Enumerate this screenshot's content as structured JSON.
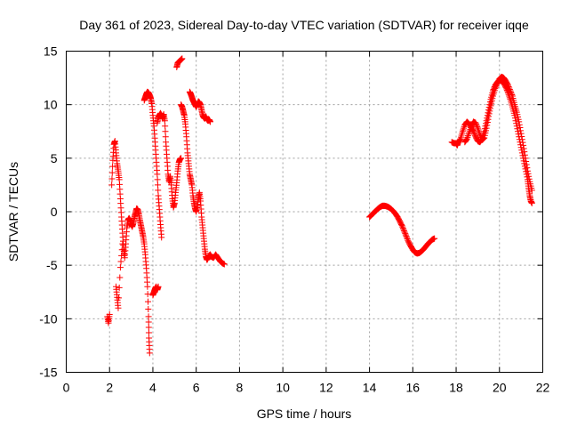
{
  "chart_data": {
    "type": "scatter",
    "title": "Day 361 of 2023, Sidereal Day-to-day VTEC variation (SDTVAR) for receiver iqqe",
    "xlabel": "GPS time / hours",
    "ylabel": "SDTVAR / TECUs",
    "xlim": [
      0,
      22
    ],
    "ylim": [
      -15,
      15
    ],
    "xticks": [
      0,
      2,
      4,
      6,
      8,
      10,
      12,
      14,
      16,
      18,
      20,
      22
    ],
    "yticks": [
      -15,
      -10,
      -5,
      0,
      5,
      10,
      15
    ],
    "grid": true,
    "marker": "plus",
    "color": "#ff0000",
    "series": [
      {
        "name": "SDTVAR",
        "segments": [
          [
            [
              1.9,
              -9.8
            ],
            [
              1.95,
              -10.4
            ],
            [
              2.0,
              -9.6
            ]
          ],
          [
            [
              2.1,
              2.5
            ],
            [
              2.15,
              4.8
            ],
            [
              2.2,
              6.3
            ],
            [
              2.25,
              6.6
            ],
            [
              2.3,
              5.5
            ],
            [
              2.35,
              4.5
            ],
            [
              2.4,
              3.8
            ],
            [
              2.45,
              3.0
            ],
            [
              2.5,
              1.2
            ],
            [
              2.55,
              -0.5
            ],
            [
              2.6,
              -2.0
            ],
            [
              2.65,
              -3.5
            ],
            [
              2.7,
              -4.3
            ],
            [
              2.75,
              -3.0
            ],
            [
              2.8,
              -1.5
            ],
            [
              2.85,
              -0.8
            ],
            [
              2.9,
              -0.6
            ],
            [
              2.95,
              -0.8
            ],
            [
              3.0,
              -1.2
            ],
            [
              3.05,
              -1.4
            ],
            [
              3.1,
              -1.0
            ],
            [
              3.15,
              -0.5
            ],
            [
              3.2,
              -0.1
            ],
            [
              3.25,
              0.3
            ],
            [
              3.3,
              0.2
            ],
            [
              3.35,
              -0.2
            ],
            [
              3.4,
              -0.8
            ],
            [
              3.45,
              -1.3
            ],
            [
              3.5,
              -1.8
            ],
            [
              3.55,
              -2.3
            ],
            [
              3.6,
              -3.0
            ],
            [
              3.65,
              -4.0
            ],
            [
              3.7,
              -5.3
            ],
            [
              3.75,
              -7.0
            ],
            [
              3.8,
              -9.8
            ],
            [
              3.82,
              -11.8
            ],
            [
              3.85,
              -13.2
            ]
          ],
          [
            [
              2.3,
              -7.0
            ],
            [
              2.35,
              -8.0
            ],
            [
              2.4,
              -9.0
            ],
            [
              2.5,
              -5.2
            ],
            [
              2.6,
              -3.0
            ]
          ],
          [
            [
              3.6,
              10.4
            ],
            [
              3.65,
              10.7
            ],
            [
              3.7,
              11.0
            ],
            [
              3.75,
              11.2
            ],
            [
              3.8,
              11.1
            ],
            [
              3.85,
              10.9
            ],
            [
              3.9,
              10.6
            ],
            [
              3.95,
              10.1
            ],
            [
              4.0,
              9.0
            ],
            [
              4.05,
              8.0
            ],
            [
              4.1,
              6.5
            ],
            [
              4.15,
              5.0
            ],
            [
              4.2,
              3.5
            ],
            [
              4.25,
              1.5
            ],
            [
              4.3,
              0.2
            ],
            [
              4.35,
              -1.2
            ],
            [
              4.4,
              -2.4
            ]
          ],
          [
            [
              4.0,
              -7.8
            ],
            [
              4.05,
              -7.5
            ],
            [
              4.1,
              -7.2
            ],
            [
              4.15,
              -7.0
            ],
            [
              4.2,
              -7.3
            ],
            [
              4.25,
              -7.0
            ]
          ],
          [
            [
              4.2,
              8.3
            ],
            [
              4.25,
              8.8
            ],
            [
              4.3,
              9.0
            ],
            [
              4.35,
              9.2
            ],
            [
              4.4,
              9.0
            ],
            [
              4.45,
              8.7
            ],
            [
              4.5,
              9.1
            ],
            [
              4.55,
              8.5
            ],
            [
              4.6,
              6.5
            ],
            [
              4.65,
              5.0
            ],
            [
              4.7,
              3.5
            ],
            [
              4.75,
              2.8
            ],
            [
              4.8,
              3.3
            ],
            [
              4.85,
              2.5
            ],
            [
              4.9,
              1.2
            ],
            [
              4.95,
              0.4
            ],
            [
              5.0,
              0.8
            ],
            [
              5.05,
              1.8
            ],
            [
              5.1,
              2.7
            ],
            [
              5.15,
              3.8
            ],
            [
              5.2,
              4.6
            ],
            [
              5.25,
              4.9
            ],
            [
              5.3,
              5.0
            ]
          ],
          [
            [
              5.1,
              13.5
            ],
            [
              5.15,
              13.9
            ],
            [
              5.2,
              14.0
            ],
            [
              5.25,
              14.1
            ],
            [
              5.3,
              14.2
            ],
            [
              5.35,
              14.3
            ]
          ],
          [
            [
              5.3,
              10.0
            ],
            [
              5.35,
              9.8
            ],
            [
              5.4,
              9.4
            ],
            [
              5.45,
              9.0
            ],
            [
              5.5,
              8.2
            ],
            [
              5.55,
              7.0
            ],
            [
              5.6,
              5.5
            ],
            [
              5.65,
              4.5
            ],
            [
              5.7,
              3.5
            ],
            [
              5.75,
              3.0
            ],
            [
              5.8,
              2.5
            ],
            [
              5.85,
              1.5
            ],
            [
              5.9,
              0.8
            ],
            [
              5.95,
              0.3
            ],
            [
              6.0,
              0.0
            ],
            [
              6.05,
              0.5
            ],
            [
              6.1,
              1.3
            ],
            [
              6.15,
              1.8
            ],
            [
              6.2,
              1.0
            ],
            [
              6.25,
              -0.5
            ],
            [
              6.3,
              -1.5
            ],
            [
              6.35,
              -2.5
            ],
            [
              6.4,
              -3.5
            ],
            [
              6.45,
              -4.2
            ],
            [
              6.5,
              -4.5
            ],
            [
              6.55,
              -4.3
            ],
            [
              6.6,
              -4.1
            ],
            [
              6.65,
              -4.0
            ],
            [
              6.7,
              -4.2
            ],
            [
              6.8,
              -4.3
            ],
            [
              6.9,
              -4.0
            ],
            [
              7.0,
              -4.3
            ],
            [
              7.1,
              -4.6
            ],
            [
              7.2,
              -4.8
            ],
            [
              7.3,
              -4.9
            ]
          ],
          [
            [
              5.7,
              11.2
            ],
            [
              5.75,
              11.0
            ],
            [
              5.8,
              10.7
            ],
            [
              5.85,
              10.4
            ],
            [
              5.9,
              10.2
            ],
            [
              5.95,
              10.0
            ],
            [
              6.0,
              9.8
            ],
            [
              6.05,
              10.0
            ],
            [
              6.1,
              10.3
            ],
            [
              6.15,
              10.2
            ],
            [
              6.2,
              10.0
            ],
            [
              6.25,
              9.5
            ],
            [
              6.3,
              9.0
            ],
            [
              6.35,
              8.8
            ],
            [
              6.4,
              8.7
            ],
            [
              6.45,
              8.9
            ],
            [
              6.5,
              8.6
            ],
            [
              6.55,
              8.5
            ],
            [
              6.6,
              8.6
            ],
            [
              6.65,
              8.4
            ]
          ],
          [
            [
              14.0,
              -0.5
            ],
            [
              14.1,
              -0.3
            ],
            [
              14.2,
              -0.1
            ],
            [
              14.3,
              0.1
            ],
            [
              14.4,
              0.3
            ],
            [
              14.5,
              0.45
            ],
            [
              14.6,
              0.55
            ],
            [
              14.7,
              0.55
            ],
            [
              14.8,
              0.5
            ],
            [
              14.9,
              0.4
            ],
            [
              15.0,
              0.25
            ],
            [
              15.1,
              0.05
            ],
            [
              15.2,
              -0.2
            ],
            [
              15.3,
              -0.5
            ],
            [
              15.4,
              -0.9
            ],
            [
              15.5,
              -1.3
            ],
            [
              15.6,
              -1.8
            ],
            [
              15.7,
              -2.3
            ],
            [
              15.8,
              -2.8
            ],
            [
              15.9,
              -3.2
            ],
            [
              16.0,
              -3.55
            ],
            [
              16.1,
              -3.8
            ],
            [
              16.2,
              -3.9
            ],
            [
              16.3,
              -3.85
            ],
            [
              16.4,
              -3.7
            ],
            [
              16.5,
              -3.5
            ],
            [
              16.6,
              -3.25
            ],
            [
              16.7,
              -3.0
            ],
            [
              16.8,
              -2.8
            ],
            [
              16.9,
              -2.6
            ],
            [
              17.0,
              -2.5
            ]
          ],
          [
            [
              17.8,
              6.5
            ],
            [
              17.9,
              6.4
            ],
            [
              18.0,
              6.4
            ],
            [
              18.05,
              6.2
            ],
            [
              18.1,
              6.5
            ],
            [
              18.2,
              6.8
            ],
            [
              18.3,
              7.5
            ],
            [
              18.4,
              8.1
            ],
            [
              18.5,
              8.4
            ],
            [
              18.6,
              8.2
            ],
            [
              18.7,
              7.9
            ],
            [
              18.8,
              7.5
            ],
            [
              18.9,
              7.0
            ],
            [
              19.0,
              6.6
            ],
            [
              19.1,
              6.5
            ],
            [
              19.2,
              6.8
            ],
            [
              19.3,
              7.5
            ],
            [
              19.4,
              8.5
            ],
            [
              19.5,
              9.5
            ],
            [
              19.6,
              10.5
            ],
            [
              19.7,
              11.3
            ],
            [
              19.8,
              11.8
            ],
            [
              19.9,
              12.1
            ],
            [
              20.0,
              12.3
            ],
            [
              20.1,
              12.2
            ],
            [
              20.2,
              12.0
            ],
            [
              20.3,
              11.6
            ],
            [
              20.4,
              11.1
            ],
            [
              20.5,
              10.5
            ],
            [
              20.6,
              9.8
            ],
            [
              20.7,
              9.0
            ],
            [
              20.8,
              8.0
            ],
            [
              20.9,
              7.0
            ],
            [
              21.0,
              6.0
            ],
            [
              21.1,
              5.0
            ],
            [
              21.2,
              4.0
            ],
            [
              21.3,
              3.0
            ],
            [
              21.35,
              2.2
            ],
            [
              21.4,
              1.5
            ],
            [
              21.45,
              1.0
            ],
            [
              21.5,
              0.8
            ]
          ],
          [
            [
              18.4,
              6.5
            ],
            [
              18.5,
              6.8
            ],
            [
              18.6,
              7.4
            ],
            [
              18.7,
              8.0
            ],
            [
              18.8,
              8.4
            ],
            [
              18.9,
              8.3
            ],
            [
              19.0,
              7.8
            ],
            [
              19.1,
              7.2
            ],
            [
              19.2,
              6.7
            ],
            [
              19.3,
              6.9
            ],
            [
              19.4,
              7.8
            ],
            [
              19.5,
              8.9
            ],
            [
              19.6,
              9.9
            ],
            [
              19.7,
              10.8
            ],
            [
              19.8,
              11.5
            ],
            [
              19.9,
              12.0
            ],
            [
              20.0,
              12.4
            ],
            [
              20.1,
              12.6
            ],
            [
              20.2,
              12.5
            ],
            [
              20.3,
              12.2
            ],
            [
              20.4,
              11.8
            ],
            [
              20.5,
              11.3
            ],
            [
              20.6,
              10.8
            ],
            [
              20.7,
              10.0
            ],
            [
              20.8,
              9.3
            ],
            [
              20.9,
              8.4
            ],
            [
              21.0,
              7.3
            ],
            [
              21.1,
              6.2
            ],
            [
              21.2,
              5.0
            ],
            [
              21.3,
              3.8
            ],
            [
              21.4,
              2.8
            ],
            [
              21.5,
              2.0
            ]
          ]
        ]
      }
    ]
  }
}
